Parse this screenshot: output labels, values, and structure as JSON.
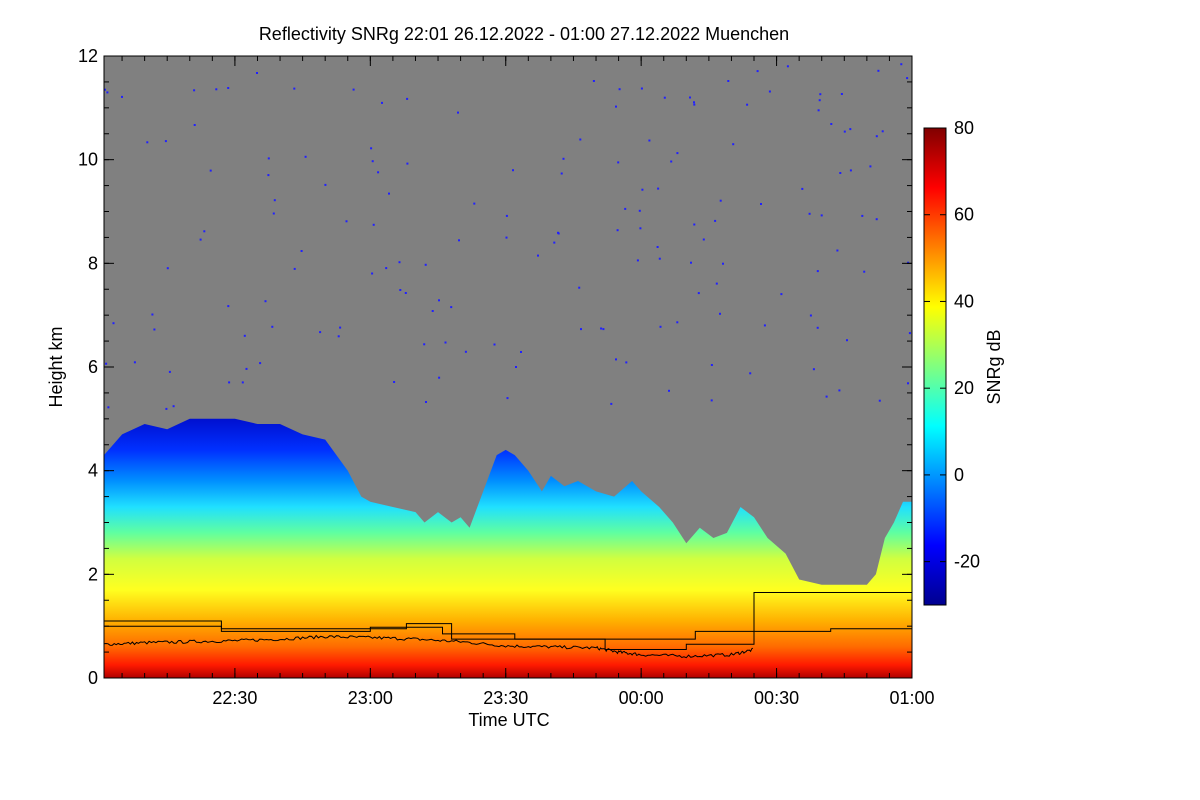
{
  "chart_data": {
    "type": "heatmap",
    "title": "Reflectivity SNRg   22:01 26.12.2022 - 01:00 27.12.2022 Muenchen",
    "xlabel": "Time UTC",
    "ylabel": "Height km",
    "colorbar_label": "SNRg dB",
    "x_range_minutes_after_2200": [
      1,
      180
    ],
    "x_ticks": [
      {
        "label": "22:30",
        "minutes_after_2200": 30
      },
      {
        "label": "23:00",
        "minutes_after_2200": 60
      },
      {
        "label": "23:30",
        "minutes_after_2200": 90
      },
      {
        "label": "00:00",
        "minutes_after_2200": 120
      },
      {
        "label": "00:30",
        "minutes_after_2200": 150
      },
      {
        "label": "01:00",
        "minutes_after_2200": 180
      }
    ],
    "ylim": [
      0,
      12
    ],
    "y_ticks": [
      0,
      2,
      4,
      6,
      8,
      10,
      12
    ],
    "colorbar_range": [
      -30,
      80
    ],
    "colorbar_ticks": [
      -20,
      0,
      20,
      40,
      60,
      80
    ],
    "background_color": "#808080",
    "colormap": [
      "#00008f",
      "#0000ff",
      "#0080ff",
      "#00ffff",
      "#80ff80",
      "#ffff00",
      "#ff8000",
      "#ff0000",
      "#800000"
    ],
    "cloud_top_km": [
      [
        1,
        4.3
      ],
      [
        5,
        4.7
      ],
      [
        10,
        4.9
      ],
      [
        15,
        4.8
      ],
      [
        20,
        5.0
      ],
      [
        25,
        5.0
      ],
      [
        30,
        5.0
      ],
      [
        35,
        4.9
      ],
      [
        40,
        4.9
      ],
      [
        45,
        4.7
      ],
      [
        50,
        4.6
      ],
      [
        55,
        4.0
      ],
      [
        58,
        3.5
      ],
      [
        60,
        3.4
      ],
      [
        65,
        3.3
      ],
      [
        70,
        3.2
      ],
      [
        72,
        3.0
      ],
      [
        75,
        3.2
      ],
      [
        78,
        3.0
      ],
      [
        80,
        3.1
      ],
      [
        82,
        2.9
      ],
      [
        85,
        3.6
      ],
      [
        88,
        4.3
      ],
      [
        90,
        4.4
      ],
      [
        92,
        4.3
      ],
      [
        95,
        4.0
      ],
      [
        98,
        3.6
      ],
      [
        100,
        3.9
      ],
      [
        103,
        3.7
      ],
      [
        106,
        3.8
      ],
      [
        110,
        3.6
      ],
      [
        114,
        3.5
      ],
      [
        118,
        3.8
      ],
      [
        120,
        3.6
      ],
      [
        124,
        3.3
      ],
      [
        127,
        3.0
      ],
      [
        130,
        2.6
      ],
      [
        133,
        2.9
      ],
      [
        136,
        2.7
      ],
      [
        139,
        2.8
      ],
      [
        142,
        3.3
      ],
      [
        145,
        3.1
      ],
      [
        148,
        2.7
      ],
      [
        152,
        2.4
      ],
      [
        155,
        1.9
      ],
      [
        160,
        1.8
      ],
      [
        165,
        1.8
      ],
      [
        170,
        1.8
      ],
      [
        172,
        2.0
      ],
      [
        174,
        2.7
      ],
      [
        176,
        3.0
      ],
      [
        178,
        3.4
      ],
      [
        180,
        3.4
      ]
    ],
    "layer_thick_km": [
      [
        1,
        1.1
      ],
      [
        27,
        1.1
      ],
      [
        27,
        0.95
      ],
      [
        68,
        0.95
      ],
      [
        68,
        1.05
      ],
      [
        78,
        1.05
      ],
      [
        78,
        0.75
      ],
      [
        132,
        0.75
      ],
      [
        132,
        0.9
      ],
      [
        162,
        0.9
      ],
      [
        162,
        0.95
      ],
      [
        180,
        0.95
      ]
    ],
    "layer_thin_km": [
      [
        1,
        1.0
      ],
      [
        27,
        1.0
      ],
      [
        27,
        0.9
      ],
      [
        60,
        0.9
      ],
      [
        60,
        0.98
      ],
      [
        76,
        0.98
      ],
      [
        76,
        0.85
      ],
      [
        92,
        0.85
      ],
      [
        92,
        0.75
      ],
      [
        112,
        0.75
      ],
      [
        112,
        0.55
      ],
      [
        130,
        0.55
      ],
      [
        130,
        0.65
      ],
      [
        145,
        0.65
      ],
      [
        145,
        1.65
      ],
      [
        180,
        1.65
      ]
    ],
    "wavy_line_km": [
      [
        1,
        0.65
      ],
      [
        10,
        0.68
      ],
      [
        20,
        0.7
      ],
      [
        30,
        0.72
      ],
      [
        40,
        0.75
      ],
      [
        50,
        0.8
      ],
      [
        60,
        0.78
      ],
      [
        70,
        0.75
      ],
      [
        80,
        0.7
      ],
      [
        90,
        0.62
      ],
      [
        100,
        0.6
      ],
      [
        110,
        0.58
      ],
      [
        115,
        0.5
      ],
      [
        120,
        0.45
      ],
      [
        130,
        0.42
      ],
      [
        140,
        0.45
      ],
      [
        145,
        0.55
      ]
    ]
  }
}
